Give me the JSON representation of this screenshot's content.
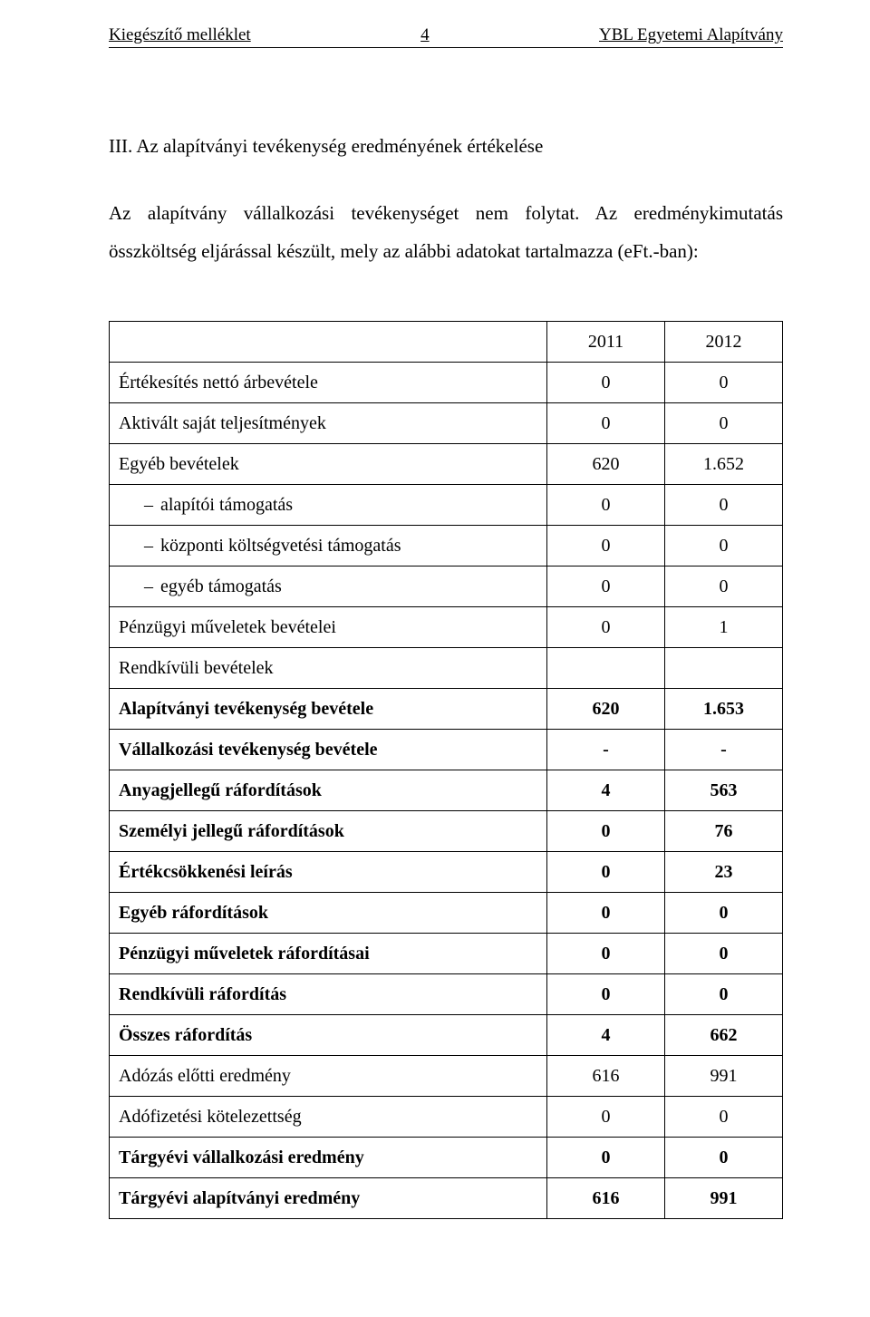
{
  "header": {
    "left": "Kiegészítő melléklet",
    "page_number": "4",
    "right": "YBL Egyetemi Alapítvány"
  },
  "section_title": "III. Az alapítványi tevékenység eredményének értékelése",
  "body_paragraph": "Az alapítvány vállalkozási tevékenységet nem folytat. Az eredménykimutatás összköltség eljárással készült, mely az alábbi adatokat tartalmazza (eFt.-ban):",
  "table": {
    "col_headers": [
      "2011",
      "2012"
    ],
    "rows": [
      {
        "label": "Értékesítés nettó árbevétele",
        "v1": "0",
        "v2": "0",
        "bold": false,
        "indent": false
      },
      {
        "label": "Aktivált saját teljesítmények",
        "v1": "0",
        "v2": "0",
        "bold": false,
        "indent": false
      },
      {
        "label": "Egyéb bevételek",
        "v1": "620",
        "v2": "1.652",
        "bold": false,
        "indent": false
      },
      {
        "label": "alapítói támogatás",
        "v1": "0",
        "v2": "0",
        "bold": false,
        "indent": true
      },
      {
        "label": "központi költségvetési támogatás",
        "v1": "0",
        "v2": "0",
        "bold": false,
        "indent": true
      },
      {
        "label": "egyéb támogatás",
        "v1": "0",
        "v2": "0",
        "bold": false,
        "indent": true
      },
      {
        "label": "Pénzügyi műveletek bevételei",
        "v1": "0",
        "v2": "1",
        "bold": false,
        "indent": false
      },
      {
        "label": "Rendkívüli bevételek",
        "v1": "",
        "v2": "",
        "bold": false,
        "indent": false
      },
      {
        "label": "Alapítványi tevékenység bevétele",
        "v1": "620",
        "v2": "1.653",
        "bold": true,
        "indent": false
      },
      {
        "label": "Vállalkozási tevékenység bevétele",
        "v1": "-",
        "v2": "-",
        "bold": true,
        "indent": false
      },
      {
        "label": "Anyagjellegű ráfordítások",
        "v1": "4",
        "v2": "563",
        "bold": true,
        "indent": false
      },
      {
        "label": "Személyi jellegű ráfordítások",
        "v1": "0",
        "v2": "76",
        "bold": true,
        "indent": false
      },
      {
        "label": "Értékcsökkenési leírás",
        "v1": "0",
        "v2": "23",
        "bold": true,
        "indent": false
      },
      {
        "label": "Egyéb ráfordítások",
        "v1": "0",
        "v2": "0",
        "bold": true,
        "indent": false
      },
      {
        "label": "Pénzügyi műveletek ráfordításai",
        "v1": "0",
        "v2": "0",
        "bold": true,
        "indent": false
      },
      {
        "label": "Rendkívüli ráfordítás",
        "v1": "0",
        "v2": "0",
        "bold": true,
        "indent": false
      },
      {
        "label": "Összes ráfordítás",
        "v1": "4",
        "v2": "662",
        "bold": true,
        "indent": false
      },
      {
        "label": "Adózás előtti eredmény",
        "v1": "616",
        "v2": "991",
        "bold": false,
        "indent": false
      },
      {
        "label": "Adófizetési kötelezettség",
        "v1": "0",
        "v2": "0",
        "bold": false,
        "indent": false
      },
      {
        "label": "Tárgyévi vállalkozási eredmény",
        "v1": "0",
        "v2": "0",
        "bold": true,
        "indent": false
      },
      {
        "label": "Tárgyévi alapítványi eredmény",
        "v1": "616",
        "v2": "991",
        "bold": true,
        "indent": false
      }
    ]
  }
}
